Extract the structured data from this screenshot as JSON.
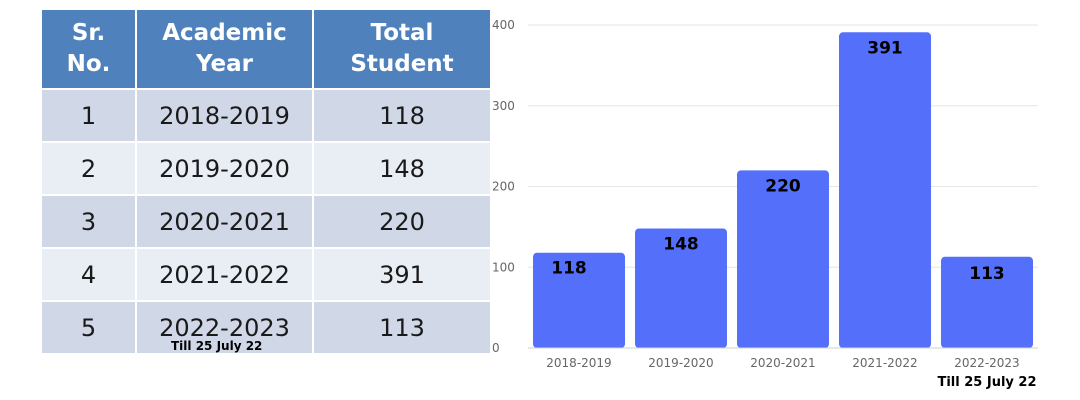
{
  "table": {
    "headers": {
      "sr_line1": "Sr.",
      "sr_line2": "No.",
      "year_line1": "Academic",
      "year_line2": "Year",
      "total_line1": "Total",
      "total_line2": "Student"
    },
    "rows": [
      {
        "sr": "1",
        "year": "2018-2019",
        "total": "118"
      },
      {
        "sr": "2",
        "year": "2019-2020",
        "total": "148"
      },
      {
        "sr": "3",
        "year": "2020-2021",
        "total": "220"
      },
      {
        "sr": "4",
        "year": "2021-2022",
        "total": "391"
      },
      {
        "sr": "5",
        "year": "2022-2023",
        "total": "113",
        "note": "Till  25 July 22"
      }
    ],
    "colors": {
      "header": "#4f81bd",
      "row_dark": "#d0d8e8",
      "row_light": "#e9edf4"
    }
  },
  "chart_data": {
    "type": "bar",
    "categories": [
      "2018-2019",
      "2019-2020",
      "2020-2021",
      "2021-2022",
      "2022-2023"
    ],
    "values": [
      118,
      148,
      220,
      391,
      113
    ],
    "data_labels": [
      "118",
      "148",
      "220",
      "391",
      "113"
    ],
    "y_ticks": [
      0,
      100,
      200,
      300,
      400
    ],
    "ylim": [
      0,
      400
    ],
    "grid": true,
    "bar_color": "#5470fb",
    "note": "Till  25 July 22"
  }
}
